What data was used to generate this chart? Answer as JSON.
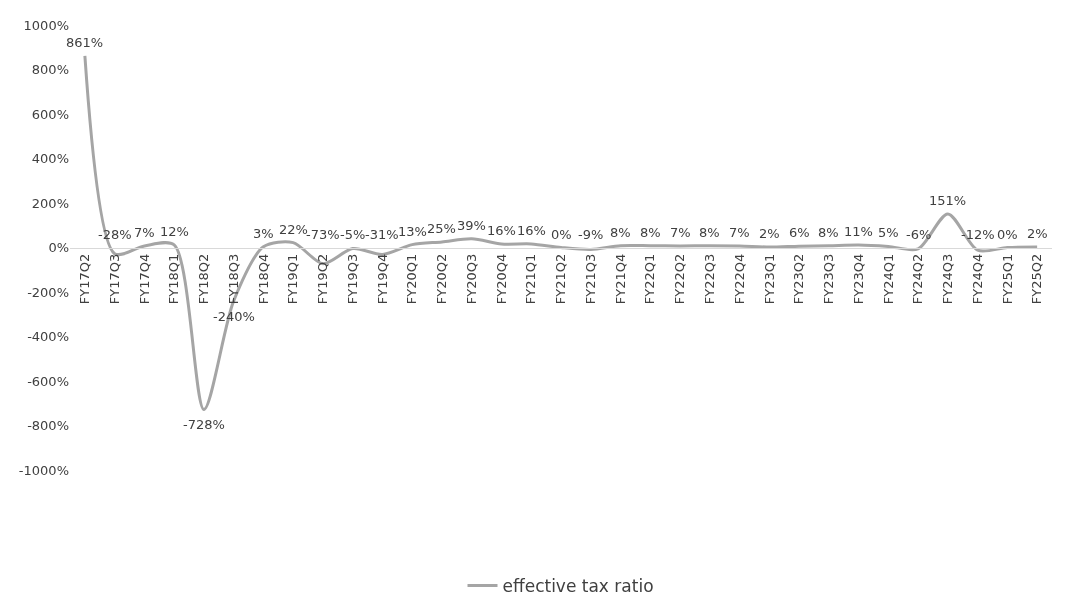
{
  "chart_data": {
    "type": "line",
    "categories": [
      "FY17Q2",
      "FY17Q3",
      "FY17Q4",
      "FY18Q1",
      "FY18Q2",
      "FY18Q3",
      "FY18Q4",
      "FY19Q1",
      "FY19Q2",
      "FY19Q3",
      "FY19Q4",
      "FY20Q1",
      "FY20Q2",
      "FY20Q3",
      "FY20Q4",
      "FY21Q1",
      "FY21Q2",
      "FY21Q3",
      "FY21Q4",
      "FY22Q1",
      "FY22Q2",
      "FY22Q3",
      "FY22Q4",
      "FY23Q1",
      "FY23Q2",
      "FY23Q3",
      "FY23Q4",
      "FY24Q1",
      "FY24Q2",
      "FY24Q3",
      "FY24Q4",
      "FY25Q1",
      "FY25Q2"
    ],
    "series": [
      {
        "name": "effective tax ratio",
        "color": "#a5a5a5",
        "values": [
          861,
          -28,
          7,
          12,
          -728,
          -240,
          3,
          22,
          -73,
          -5,
          -31,
          13,
          25,
          39,
          16,
          16,
          0,
          -9,
          8,
          8,
          7,
          8,
          7,
          2,
          6,
          8,
          11,
          5,
          -6,
          151,
          -12,
          0,
          2
        ],
        "value_labels": [
          "861%",
          "-28%",
          "7%",
          "12%",
          "-728%",
          "-240%",
          "3%",
          "22%",
          "-73%",
          "-5%",
          "-31%",
          "13%",
          "25%",
          "39%",
          "16%",
          "16%",
          "0%",
          "-9%",
          "8%",
          "8%",
          "7%",
          "8%",
          "7%",
          "2%",
          "6%",
          "8%",
          "11%",
          "5%",
          "-6%",
          "151%",
          "-12%",
          "0%",
          "2%"
        ]
      }
    ],
    "ylim": [
      -1000,
      1000
    ],
    "yticks": [
      {
        "value": -1000,
        "label": "-1000%"
      },
      {
        "value": -800,
        "label": "-800%"
      },
      {
        "value": -600,
        "label": "-600%"
      },
      {
        "value": -400,
        "label": "-400%"
      },
      {
        "value": -200,
        "label": "-200%"
      },
      {
        "value": 0,
        "label": "0%"
      },
      {
        "value": 200,
        "label": "200%"
      },
      {
        "value": 400,
        "label": "400%"
      },
      {
        "value": 600,
        "label": "600%"
      },
      {
        "value": 800,
        "label": "800%"
      },
      {
        "value": 1000,
        "label": "1000%"
      }
    ],
    "grid": false,
    "legend": "bottom",
    "line_style": "solid",
    "marker": "none"
  }
}
